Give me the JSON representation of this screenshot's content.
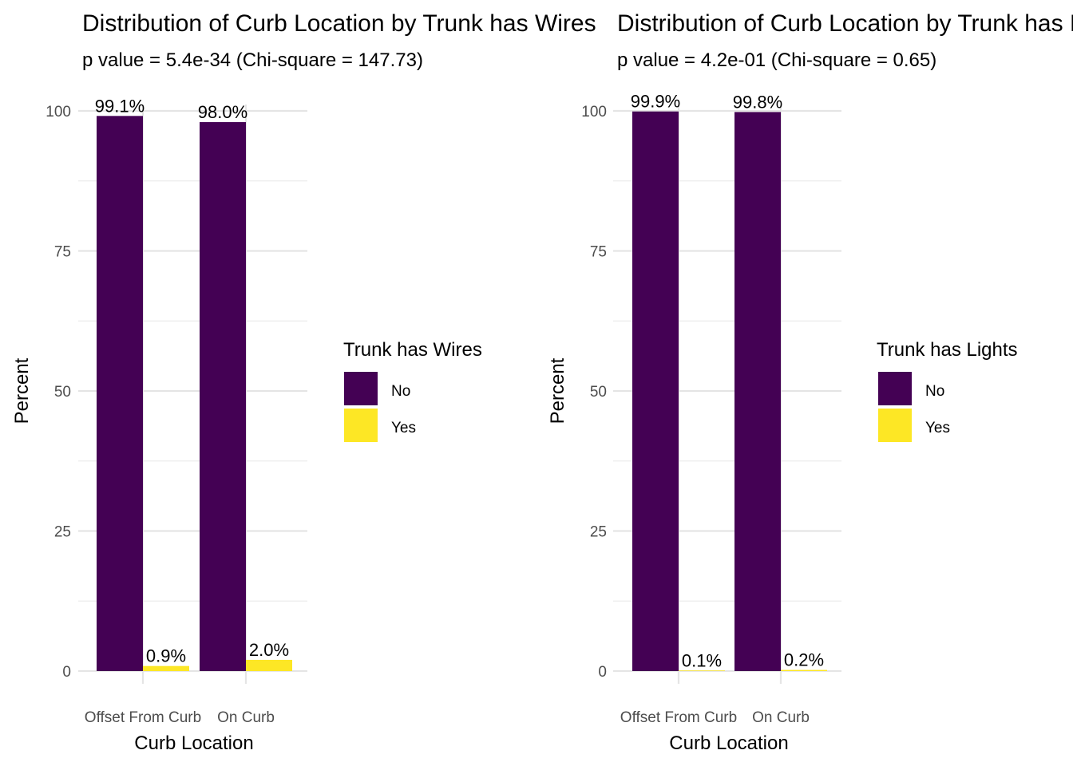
{
  "chart_data": [
    {
      "type": "bar",
      "title": "Distribution of Curb Location by Trunk has Wires",
      "subtitle": "p value = 5.4e-34 (Chi-square = 147.73)",
      "xlabel": "Curb Location",
      "ylabel": "Percent",
      "ylim": [
        0,
        100
      ],
      "yticks": [
        0,
        25,
        50,
        75,
        100
      ],
      "ytick_labels": [
        "0",
        "25",
        "50",
        "75",
        "100"
      ],
      "grid": true,
      "legend_position": "right",
      "legend_title": "Trunk has Wires",
      "categories": [
        "Offset From Curb",
        "On Curb"
      ],
      "series": [
        {
          "name": "No",
          "color": "#440154",
          "values": [
            99.1,
            98.0
          ],
          "labels": [
            "99.1%",
            "98.0%"
          ]
        },
        {
          "name": "Yes",
          "color": "#FDE725",
          "values": [
            0.9,
            2.0
          ],
          "labels": [
            "0.9%",
            "2.0%"
          ]
        }
      ]
    },
    {
      "type": "bar",
      "title": "Distribution of Curb Location by Trunk has Lights",
      "subtitle": "p value = 4.2e-01 (Chi-square = 0.65)",
      "xlabel": "Curb Location",
      "ylabel": "Percent",
      "ylim": [
        0,
        100
      ],
      "yticks": [
        0,
        25,
        50,
        75,
        100
      ],
      "ytick_labels": [
        "0",
        "25",
        "50",
        "75",
        "100"
      ],
      "grid": true,
      "legend_position": "right",
      "legend_title": "Trunk has Lights",
      "categories": [
        "Offset From Curb",
        "On Curb"
      ],
      "series": [
        {
          "name": "No",
          "color": "#440154",
          "values": [
            99.9,
            99.8
          ],
          "labels": [
            "99.9%",
            "99.8%"
          ]
        },
        {
          "name": "Yes",
          "color": "#FDE725",
          "values": [
            0.1,
            0.2
          ],
          "labels": [
            "0.1%",
            "0.2%"
          ]
        }
      ]
    }
  ]
}
